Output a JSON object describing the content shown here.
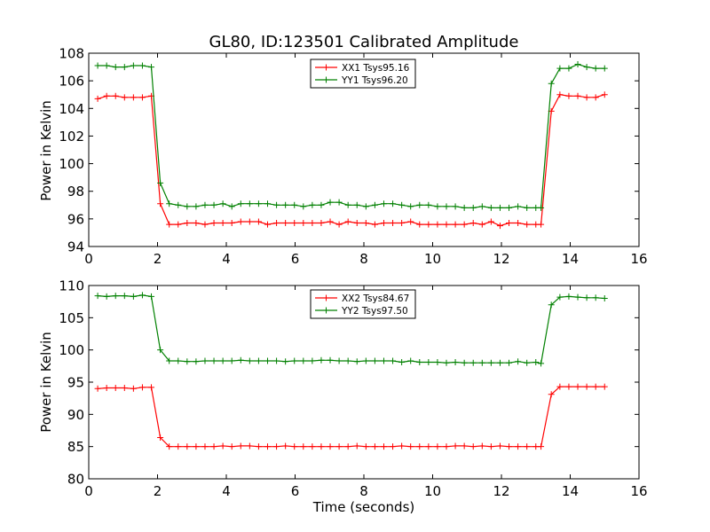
{
  "chart_data": [
    {
      "type": "line",
      "title": "GL80, ID:123501 Calibrated Amplitude",
      "xlabel": "",
      "ylabel": "Power in Kelvin",
      "xlim": [
        0,
        16
      ],
      "ylim": [
        94,
        108
      ],
      "xticks": [
        "0",
        "2",
        "4",
        "6",
        "8",
        "10",
        "12",
        "14",
        "16"
      ],
      "yticks": [
        "94",
        "96",
        "98",
        "100",
        "102",
        "104",
        "106",
        "108"
      ],
      "legend_position": "top-center",
      "x": [
        0.26,
        0.52,
        0.78,
        1.04,
        1.3,
        1.56,
        1.82,
        2.08,
        2.34,
        2.6,
        2.86,
        3.12,
        3.38,
        3.64,
        3.9,
        4.16,
        4.42,
        4.68,
        4.94,
        5.2,
        5.46,
        5.72,
        5.98,
        6.24,
        6.5,
        6.76,
        7.02,
        7.28,
        7.54,
        7.8,
        8.06,
        8.32,
        8.58,
        8.84,
        9.1,
        9.36,
        9.62,
        9.88,
        10.14,
        10.4,
        10.66,
        10.92,
        11.18,
        11.44,
        11.7,
        11.96,
        12.22,
        12.48,
        12.74,
        13.0,
        13.15,
        13.45,
        13.7,
        13.96,
        14.22,
        14.48,
        14.74,
        15.0
      ],
      "series": [
        {
          "name": "XX1 Tsys95.16",
          "color": "#ff0000",
          "values": [
            104.7,
            104.9,
            104.9,
            104.8,
            104.8,
            104.8,
            104.9,
            97.1,
            95.6,
            95.6,
            95.7,
            95.7,
            95.6,
            95.7,
            95.7,
            95.7,
            95.8,
            95.8,
            95.8,
            95.6,
            95.7,
            95.7,
            95.7,
            95.7,
            95.7,
            95.7,
            95.8,
            95.6,
            95.8,
            95.7,
            95.7,
            95.6,
            95.7,
            95.7,
            95.7,
            95.8,
            95.6,
            95.6,
            95.6,
            95.6,
            95.6,
            95.6,
            95.7,
            95.6,
            95.8,
            95.5,
            95.7,
            95.7,
            95.6,
            95.6,
            95.6,
            103.8,
            105.0,
            104.9,
            104.9,
            104.8,
            104.8,
            105.0
          ]
        },
        {
          "name": "YY1 Tsys96.20",
          "color": "#008000",
          "values": [
            107.1,
            107.1,
            107.0,
            107.0,
            107.1,
            107.1,
            107.0,
            98.6,
            97.1,
            97.0,
            96.9,
            96.9,
            97.0,
            97.0,
            97.1,
            96.9,
            97.1,
            97.1,
            97.1,
            97.1,
            97.0,
            97.0,
            97.0,
            96.9,
            97.0,
            97.0,
            97.2,
            97.2,
            97.0,
            97.0,
            96.9,
            97.0,
            97.1,
            97.1,
            97.0,
            96.9,
            97.0,
            97.0,
            96.9,
            96.9,
            96.9,
            96.8,
            96.8,
            96.9,
            96.8,
            96.8,
            96.8,
            96.9,
            96.8,
            96.8,
            96.8,
            105.8,
            106.9,
            106.9,
            107.2,
            107.0,
            106.9,
            106.9
          ]
        }
      ]
    },
    {
      "type": "line",
      "title": "",
      "xlabel": "Time (seconds)",
      "ylabel": "Power in Kelvin",
      "xlim": [
        0,
        16
      ],
      "ylim": [
        80,
        110
      ],
      "xticks": [
        "0",
        "2",
        "4",
        "6",
        "8",
        "10",
        "12",
        "14",
        "16"
      ],
      "yticks": [
        "80",
        "85",
        "90",
        "95",
        "100",
        "105",
        "110"
      ],
      "legend_position": "top-center",
      "x": [
        0.26,
        0.52,
        0.78,
        1.04,
        1.3,
        1.56,
        1.82,
        2.08,
        2.34,
        2.6,
        2.86,
        3.12,
        3.38,
        3.64,
        3.9,
        4.16,
        4.42,
        4.68,
        4.94,
        5.2,
        5.46,
        5.72,
        5.98,
        6.24,
        6.5,
        6.76,
        7.02,
        7.28,
        7.54,
        7.8,
        8.06,
        8.32,
        8.58,
        8.84,
        9.1,
        9.36,
        9.62,
        9.88,
        10.14,
        10.4,
        10.66,
        10.92,
        11.18,
        11.44,
        11.7,
        11.96,
        12.22,
        12.48,
        12.74,
        13.0,
        13.15,
        13.45,
        13.7,
        13.96,
        14.22,
        14.48,
        14.74,
        15.0
      ],
      "series": [
        {
          "name": "XX2 Tsys84.67",
          "color": "#ff0000",
          "values": [
            94.0,
            94.1,
            94.1,
            94.1,
            94.0,
            94.2,
            94.2,
            86.4,
            85.0,
            85.0,
            85.0,
            85.0,
            85.0,
            85.0,
            85.1,
            85.0,
            85.1,
            85.1,
            85.0,
            85.0,
            85.0,
            85.1,
            85.0,
            85.0,
            85.0,
            85.0,
            85.0,
            85.0,
            85.0,
            85.1,
            85.0,
            85.0,
            85.0,
            85.0,
            85.1,
            85.0,
            85.0,
            85.0,
            85.0,
            85.0,
            85.1,
            85.1,
            85.0,
            85.1,
            85.0,
            85.1,
            85.0,
            85.0,
            85.0,
            85.0,
            85.0,
            93.1,
            94.3,
            94.3,
            94.3,
            94.3,
            94.3,
            94.3
          ]
        },
        {
          "name": "YY2 Tsys97.50",
          "color": "#008000",
          "values": [
            108.4,
            108.3,
            108.4,
            108.4,
            108.3,
            108.5,
            108.3,
            100.0,
            98.3,
            98.3,
            98.2,
            98.2,
            98.3,
            98.3,
            98.3,
            98.3,
            98.4,
            98.3,
            98.3,
            98.3,
            98.3,
            98.2,
            98.3,
            98.3,
            98.3,
            98.4,
            98.4,
            98.3,
            98.3,
            98.2,
            98.3,
            98.3,
            98.3,
            98.3,
            98.1,
            98.3,
            98.1,
            98.1,
            98.1,
            98.0,
            98.1,
            98.0,
            98.0,
            98.0,
            98.0,
            98.0,
            98.0,
            98.2,
            98.0,
            98.1,
            97.9,
            107.0,
            108.2,
            108.3,
            108.2,
            108.1,
            108.1,
            108.0
          ]
        }
      ]
    }
  ]
}
